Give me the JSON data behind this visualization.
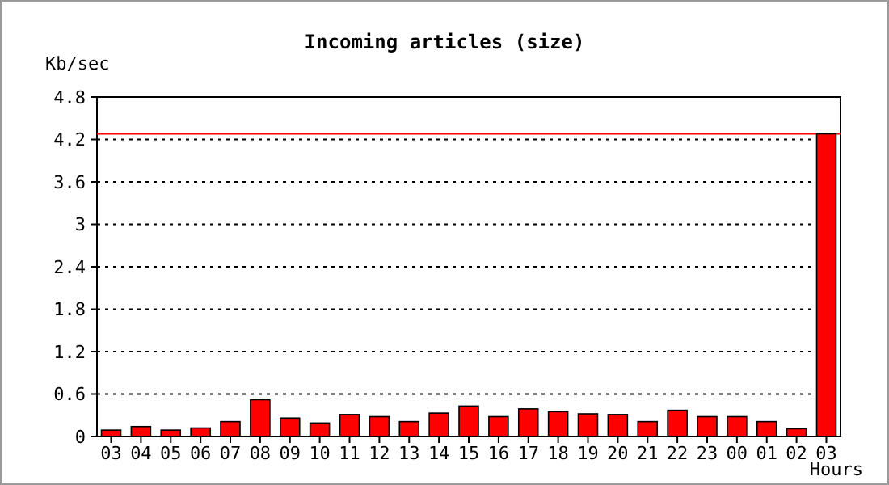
{
  "chart_data": {
    "type": "bar",
    "title": "Incoming articles (size)",
    "ylabel": "Kb/sec",
    "xlabel": "Hours",
    "categories": [
      "03",
      "04",
      "05",
      "06",
      "07",
      "08",
      "09",
      "10",
      "11",
      "12",
      "13",
      "14",
      "15",
      "16",
      "17",
      "18",
      "19",
      "20",
      "21",
      "22",
      "23",
      "00",
      "01",
      "02",
      "03"
    ],
    "values": [
      0.09,
      0.14,
      0.09,
      0.12,
      0.21,
      0.52,
      0.26,
      0.19,
      0.31,
      0.28,
      0.21,
      0.33,
      0.43,
      0.28,
      0.39,
      0.35,
      0.32,
      0.31,
      0.21,
      0.37,
      0.28,
      0.28,
      0.21,
      0.11,
      4.28
    ],
    "color": "#ff0000",
    "ylim": [
      0,
      4.8
    ],
    "yticks": [
      0,
      0.6,
      1.2,
      1.8,
      2.4,
      3,
      3.6,
      4.2,
      4.8
    ],
    "grid": "y",
    "ref_lines": [
      {
        "axis": "y",
        "value": 4.28,
        "color": "#ff0000"
      }
    ]
  }
}
